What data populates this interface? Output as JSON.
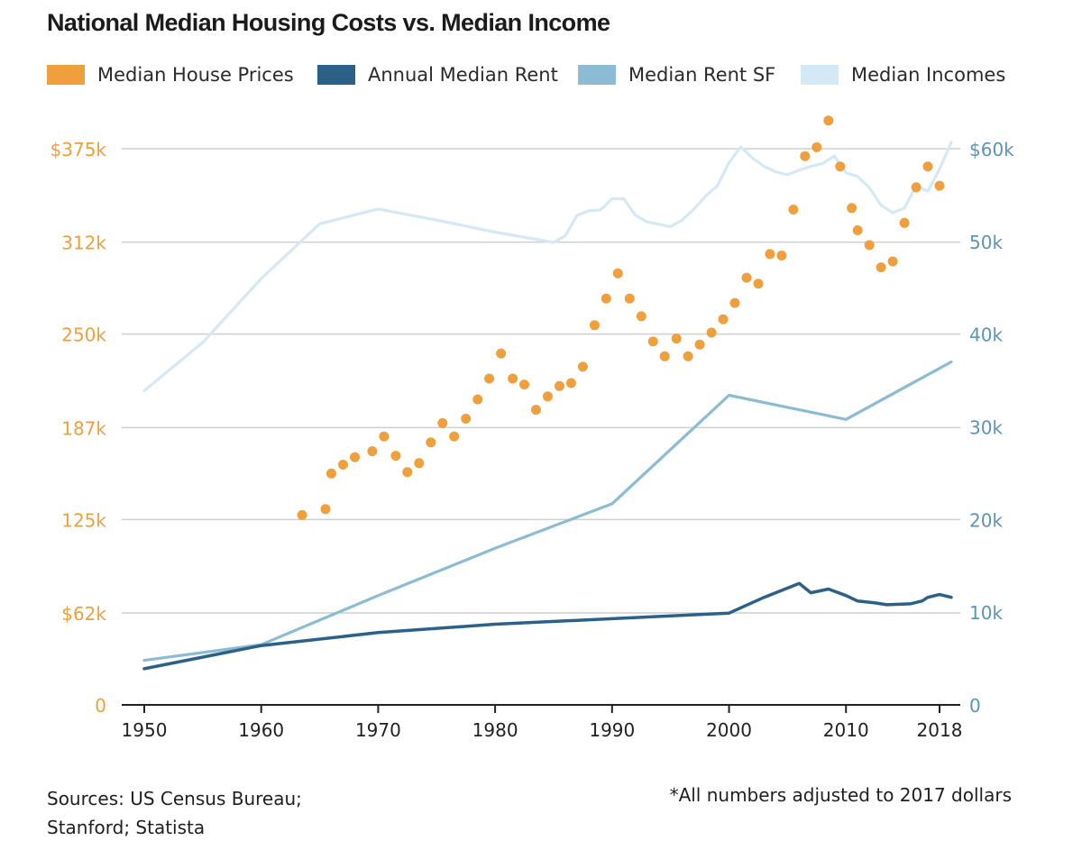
{
  "header": {
    "title": "National Median Housing Costs vs. Median Income"
  },
  "legend": [
    {
      "label": "Median House Prices",
      "color": "#ef9f3c"
    },
    {
      "label": "Annual Median Rent",
      "color": "#2b6189"
    },
    {
      "label": "Median Rent SF",
      "color": "#8bbcd4"
    },
    {
      "label": "Median Incomes",
      "color": "#d4e9f5"
    }
  ],
  "footer": {
    "source_line1": "Sources: US Census Bureau;",
    "source_line2": "Stanford; Statista",
    "note": "*All numbers adjusted to 2017  dollars"
  },
  "chart_data": {
    "type": "line",
    "title": "National Median Housing Costs vs. Median Income",
    "x_ticks": [
      "1950",
      "1960",
      "1970",
      "1980",
      "1990",
      "2000",
      "2010",
      "2018"
    ],
    "xlim": [
      1950,
      2018
    ],
    "grid": true,
    "legend_position": "top",
    "y_left": {
      "ticks": [
        {
          "value": 0,
          "label": "0"
        },
        {
          "value": 62,
          "label": "$62k"
        },
        {
          "value": 125,
          "label": "125k"
        },
        {
          "value": 187,
          "label": "187k"
        },
        {
          "value": 250,
          "label": "250k"
        },
        {
          "value": 312,
          "label": "312k"
        },
        {
          "value": 375,
          "label": "$375k"
        }
      ],
      "range": [
        0,
        375
      ],
      "color": "#ef9f3c"
    },
    "y_right": {
      "ticks": [
        {
          "value": 0,
          "label": "0"
        },
        {
          "value": 10,
          "label": "10k"
        },
        {
          "value": 20,
          "label": "20k"
        },
        {
          "value": 30,
          "label": "30k"
        },
        {
          "value": 40,
          "label": "40k"
        },
        {
          "value": 50,
          "label": "50k"
        },
        {
          "value": 60,
          "label": "$60k"
        }
      ],
      "range": [
        0,
        60
      ],
      "color": "#5b95b5"
    },
    "series": [
      {
        "name": "Median House Prices",
        "kind": "scatter",
        "axis": "left",
        "color": "#ef9f3c",
        "x": [
          1963.5,
          1965.5,
          1966,
          1967,
          1968,
          1969.5,
          1970.5,
          1971.5,
          1972.5,
          1973.5,
          1974.5,
          1975.5,
          1976.5,
          1977.5,
          1978.5,
          1979.5,
          1980.5,
          1981.5,
          1982.5,
          1983.5,
          1984.5,
          1985.5,
          1986.5,
          1987.5,
          1988.5,
          1989.5,
          1990.5,
          1991.5,
          1992.5,
          1993.5,
          1994.5,
          1995.5,
          1996.5,
          1997.5,
          1998.5,
          1999.5,
          2000.5,
          2001.5,
          2002.5,
          2003.5,
          2004.5,
          2005.5,
          2006.5,
          2007.5,
          2008.5,
          2009.5,
          2010.5,
          2011,
          2012,
          2013,
          2014,
          2015,
          2016,
          2017,
          2018
        ],
        "y": [
          128,
          132,
          156,
          162,
          167,
          171,
          181,
          168,
          157,
          163,
          177,
          190,
          181,
          193,
          206,
          220,
          237,
          220,
          216,
          199,
          208,
          215,
          217,
          228,
          256,
          274,
          291,
          274,
          262,
          245,
          235,
          247,
          235,
          243,
          251,
          260,
          271,
          288,
          284,
          304,
          303,
          334,
          370,
          376,
          394,
          363,
          335,
          320,
          310,
          295,
          299,
          325,
          349,
          363,
          350
        ]
      },
      {
        "name": "Annual Median Rent",
        "kind": "line",
        "axis": "right",
        "color": "#2b6189",
        "x": [
          1950,
          1960,
          1970,
          1980,
          1990,
          2000,
          2003,
          2006,
          2007,
          2008.5,
          2010,
          2011,
          2012.5,
          2013.5,
          2015.5,
          2016.5,
          2017,
          2018,
          2019
        ],
        "y": [
          3.9,
          6.4,
          7.8,
          8.7,
          9.3,
          9.9,
          11.6,
          13.1,
          12.1,
          12.5,
          11.8,
          11.2,
          11.0,
          10.8,
          10.9,
          11.2,
          11.6,
          11.9,
          11.6
        ]
      },
      {
        "name": "Median Rent SF",
        "kind": "line",
        "axis": "right",
        "color": "#8bbcd4",
        "x": [
          1950,
          1960,
          1970,
          1980,
          1990,
          2000,
          2010,
          2019
        ],
        "y": [
          4.8,
          6.5,
          11.8,
          16.9,
          21.7,
          33.4,
          30.8,
          37.0
        ]
      },
      {
        "name": "Median Incomes",
        "kind": "line",
        "axis": "right",
        "color": "#d4e9f5",
        "x": [
          1950,
          1955,
          1960,
          1965,
          1970,
          1975,
          1980,
          1985,
          1986,
          1987,
          1988,
          1989,
          1990,
          1991,
          1992,
          1993,
          1995,
          1996,
          1997,
          1998,
          1999,
          2000,
          2001,
          2002,
          2003,
          2004,
          2005,
          2006,
          2007,
          2008,
          2009,
          2010,
          2011,
          2012,
          2013,
          2014,
          2015,
          2016,
          2017,
          2018,
          2019
        ],
        "y": [
          33.9,
          39.1,
          46.0,
          51.9,
          53.5,
          52.3,
          51.0,
          49.9,
          50.6,
          52.8,
          53.3,
          53.4,
          54.6,
          54.6,
          52.8,
          52.1,
          51.6,
          52.3,
          53.5,
          54.9,
          56.0,
          58.5,
          60.2,
          59.0,
          58.1,
          57.5,
          57.2,
          57.7,
          58.1,
          58.4,
          59.2,
          57.4,
          57.0,
          55.8,
          53.9,
          53.1,
          53.6,
          56.0,
          55.4,
          57.8,
          60.7
        ]
      }
    ]
  }
}
